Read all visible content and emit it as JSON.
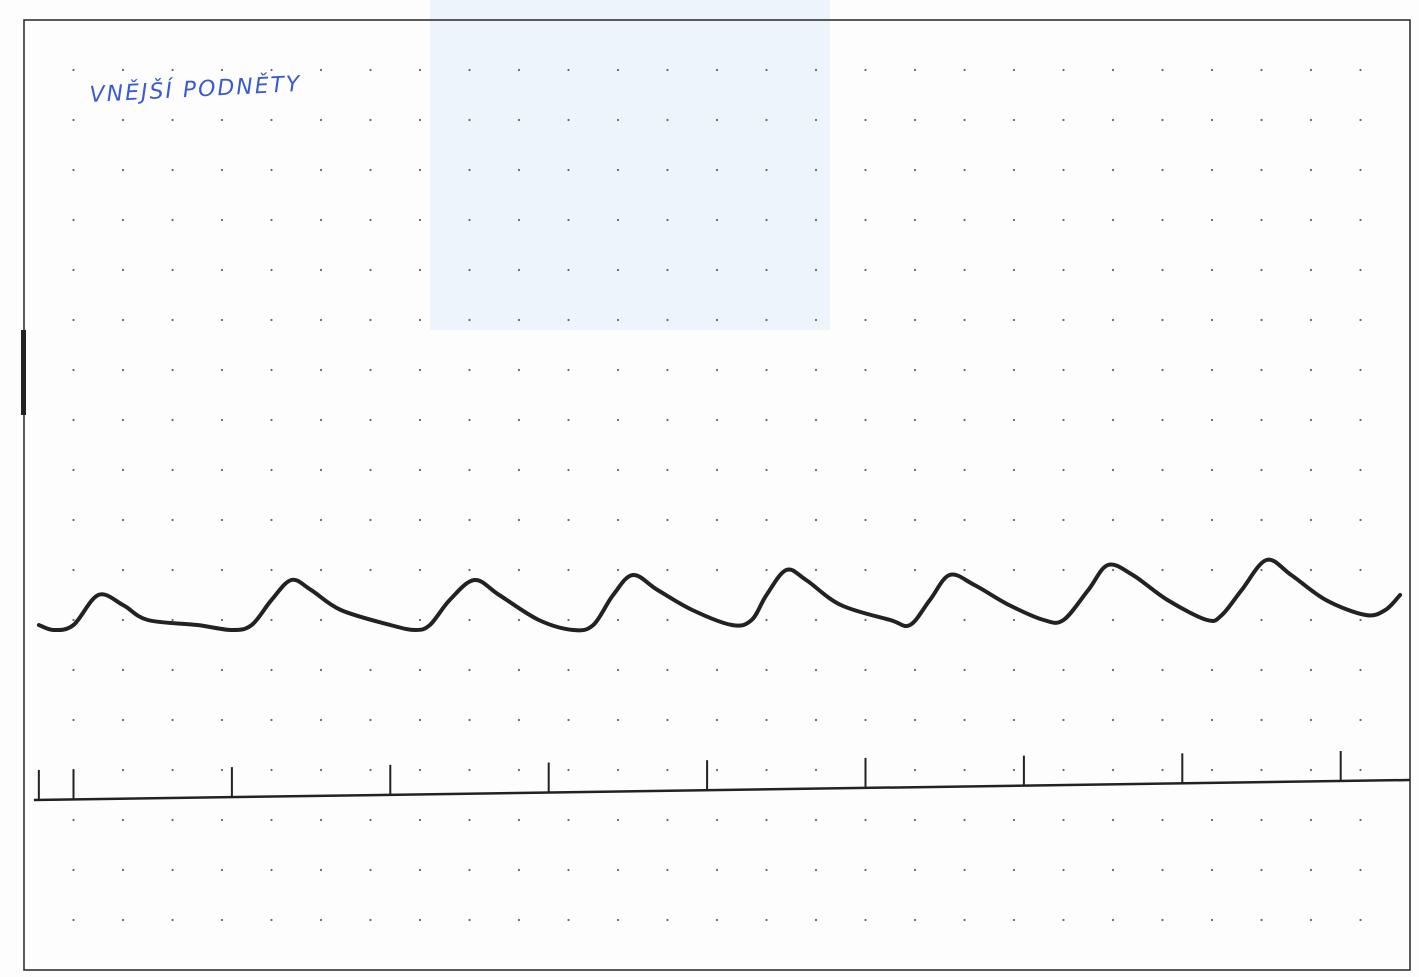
{
  "annotation": {
    "text": "VNĚJŠÍ PODNĚTY",
    "color": "#3a5bd0"
  },
  "colors": {
    "trace": "#222222",
    "frame": "#333333",
    "grid_dot": "#666666",
    "highlight": "#eef4fb"
  },
  "chart_data": {
    "type": "line",
    "title": "",
    "xlabel": "",
    "ylabel": "",
    "grid": "dotted",
    "x_divisions": 28,
    "y_divisions": 19,
    "series": [
      {
        "points": [
          [
            0.3,
            6.9
          ],
          [
            0.6,
            6.8
          ],
          [
            1.0,
            6.9
          ],
          [
            1.5,
            7.5
          ],
          [
            2.0,
            7.3
          ],
          [
            2.5,
            7.0
          ],
          [
            3.5,
            6.9
          ],
          [
            4.2,
            6.8
          ],
          [
            4.6,
            6.9
          ],
          [
            5.0,
            7.4
          ],
          [
            5.4,
            7.8
          ],
          [
            5.8,
            7.6
          ],
          [
            6.4,
            7.2
          ],
          [
            7.4,
            6.9
          ],
          [
            7.9,
            6.8
          ],
          [
            8.2,
            6.9
          ],
          [
            8.6,
            7.4
          ],
          [
            9.1,
            7.8
          ],
          [
            9.6,
            7.5
          ],
          [
            10.4,
            7.0
          ],
          [
            11.1,
            6.8
          ],
          [
            11.5,
            6.9
          ],
          [
            11.9,
            7.5
          ],
          [
            12.3,
            7.9
          ],
          [
            12.8,
            7.6
          ],
          [
            13.5,
            7.2
          ],
          [
            14.3,
            6.9
          ],
          [
            14.7,
            7.0
          ],
          [
            15.0,
            7.5
          ],
          [
            15.4,
            8.0
          ],
          [
            15.8,
            7.8
          ],
          [
            16.5,
            7.3
          ],
          [
            17.5,
            7.0
          ],
          [
            17.9,
            6.9
          ],
          [
            18.3,
            7.4
          ],
          [
            18.7,
            7.9
          ],
          [
            19.2,
            7.7
          ],
          [
            19.9,
            7.3
          ],
          [
            20.6,
            7.0
          ],
          [
            21.0,
            7.0
          ],
          [
            21.5,
            7.6
          ],
          [
            21.9,
            8.1
          ],
          [
            22.4,
            7.9
          ],
          [
            23.1,
            7.4
          ],
          [
            23.9,
            7.0
          ],
          [
            24.2,
            7.1
          ],
          [
            24.6,
            7.6
          ],
          [
            25.1,
            8.2
          ],
          [
            25.6,
            7.9
          ],
          [
            26.3,
            7.4
          ],
          [
            27.1,
            7.1
          ],
          [
            27.5,
            7.2
          ],
          [
            27.8,
            7.5
          ]
        ]
      },
      {
        "baseline": [
          [
            0.2,
            3.4
          ],
          [
            28.0,
            3.8
          ]
        ],
        "marker_x": [
          0.3,
          1.0,
          4.2,
          7.4,
          10.6,
          13.8,
          17.0,
          20.2,
          23.4,
          26.6
        ],
        "marker_height": 0.6
      }
    ]
  }
}
